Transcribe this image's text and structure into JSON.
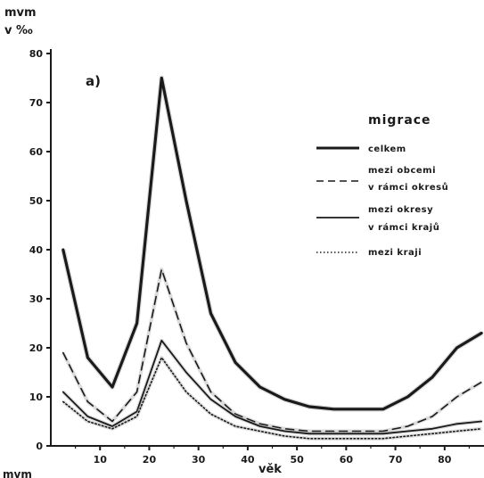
{
  "chart_data": {
    "type": "line",
    "panel_label": "a)",
    "ylabel_line1": "mvm",
    "ylabel_line2": "v ‰",
    "xlabel": "věk",
    "bottom_cut_label": "mvm",
    "ylim": [
      0,
      80
    ],
    "yticks": [
      0,
      10,
      20,
      30,
      40,
      50,
      60,
      70,
      80
    ],
    "xlim": [
      0,
      88
    ],
    "xticks": [
      10,
      20,
      30,
      40,
      50,
      60,
      70,
      80
    ],
    "legend_title": "migrace",
    "legend_position": "top-right",
    "x": [
      2.5,
      7.5,
      12.5,
      17.5,
      22.5,
      27.5,
      32.5,
      37.5,
      42.5,
      47.5,
      52.5,
      57.5,
      62.5,
      67.5,
      72.5,
      77.5,
      82.5,
      87.5
    ],
    "series": [
      {
        "name": "celkem",
        "style": "solid-thick",
        "values": [
          40,
          18,
          12,
          25,
          75,
          50,
          27,
          17,
          12,
          9.5,
          8,
          7.5,
          7.5,
          7.5,
          10,
          14,
          20,
          23
        ]
      },
      {
        "name_line1": "mezi obcemi",
        "name_line2": "v rámci okresů",
        "style": "dashed",
        "values": [
          19,
          9,
          5,
          11,
          36,
          21,
          11,
          6.5,
          4.5,
          3.5,
          3,
          3,
          3,
          3,
          4,
          6,
          10,
          13
        ]
      },
      {
        "name_line1": "mezi okresy",
        "name_line2": "v rámci krajů",
        "style": "solid",
        "values": [
          11,
          6,
          4,
          7,
          21.5,
          15,
          9.5,
          6,
          4,
          3,
          2.5,
          2.5,
          2.5,
          2.5,
          3,
          3.5,
          4.5,
          5
        ]
      },
      {
        "name": "mezi kraji",
        "style": "dotted",
        "values": [
          9,
          5,
          3.5,
          6,
          18,
          11,
          6.5,
          4,
          3,
          2,
          1.5,
          1.5,
          1.5,
          1.5,
          2,
          2.5,
          3,
          3.5
        ]
      }
    ]
  }
}
